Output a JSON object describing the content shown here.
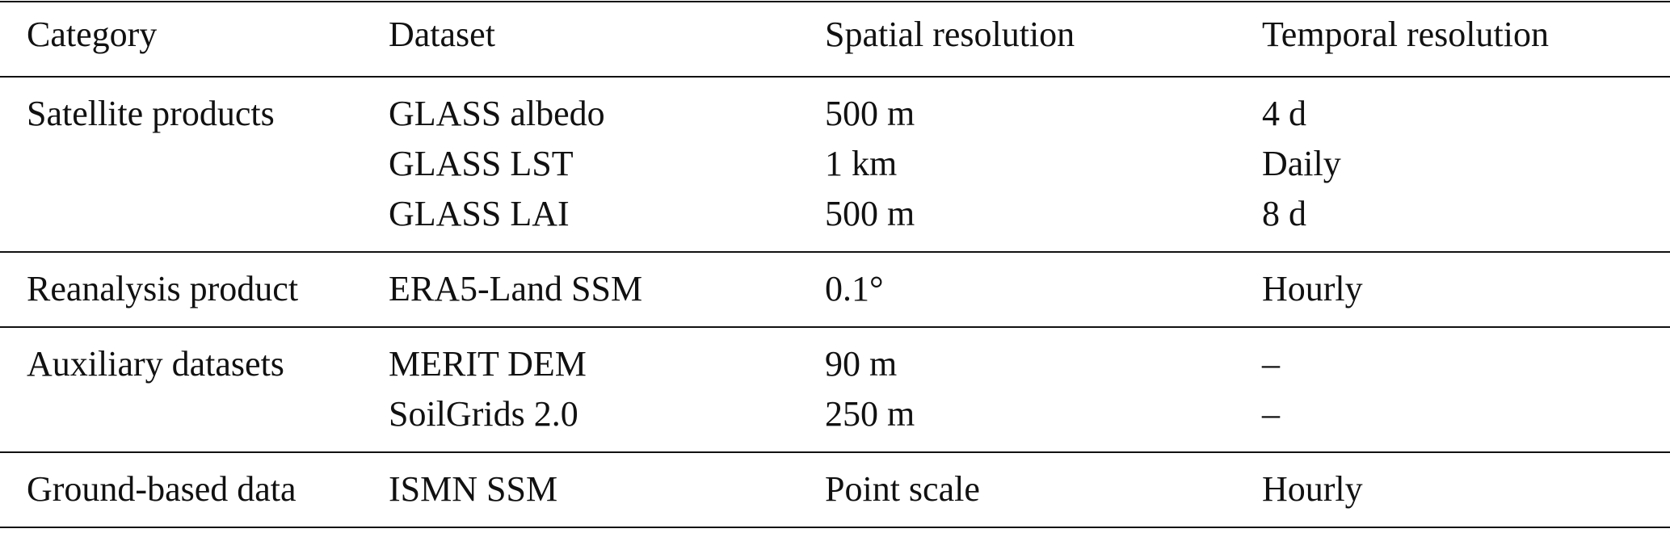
{
  "table": {
    "header": [
      "Category",
      "Dataset",
      "Spatial resolution",
      "Temporal resolution"
    ],
    "groups": [
      {
        "category": "Satellite products",
        "rows": [
          [
            "GLASS albedo",
            "500 m",
            "4 d"
          ],
          [
            "GLASS LST",
            "1 km",
            "Daily"
          ],
          [
            "GLASS LAI",
            "500 m",
            "8 d"
          ]
        ]
      },
      {
        "category": "Reanalysis product",
        "rows": [
          [
            "ERA5-Land SSM",
            "0.1°",
            "Hourly"
          ]
        ]
      },
      {
        "category": "Auxiliary datasets",
        "rows": [
          [
            "MERIT DEM",
            "90 m",
            "–"
          ],
          [
            "SoilGrids 2.0",
            "250 m",
            "–"
          ]
        ]
      },
      {
        "category": "Ground-based data",
        "rows": [
          [
            "ISMN SSM",
            "Point scale",
            "Hourly"
          ]
        ]
      }
    ]
  }
}
